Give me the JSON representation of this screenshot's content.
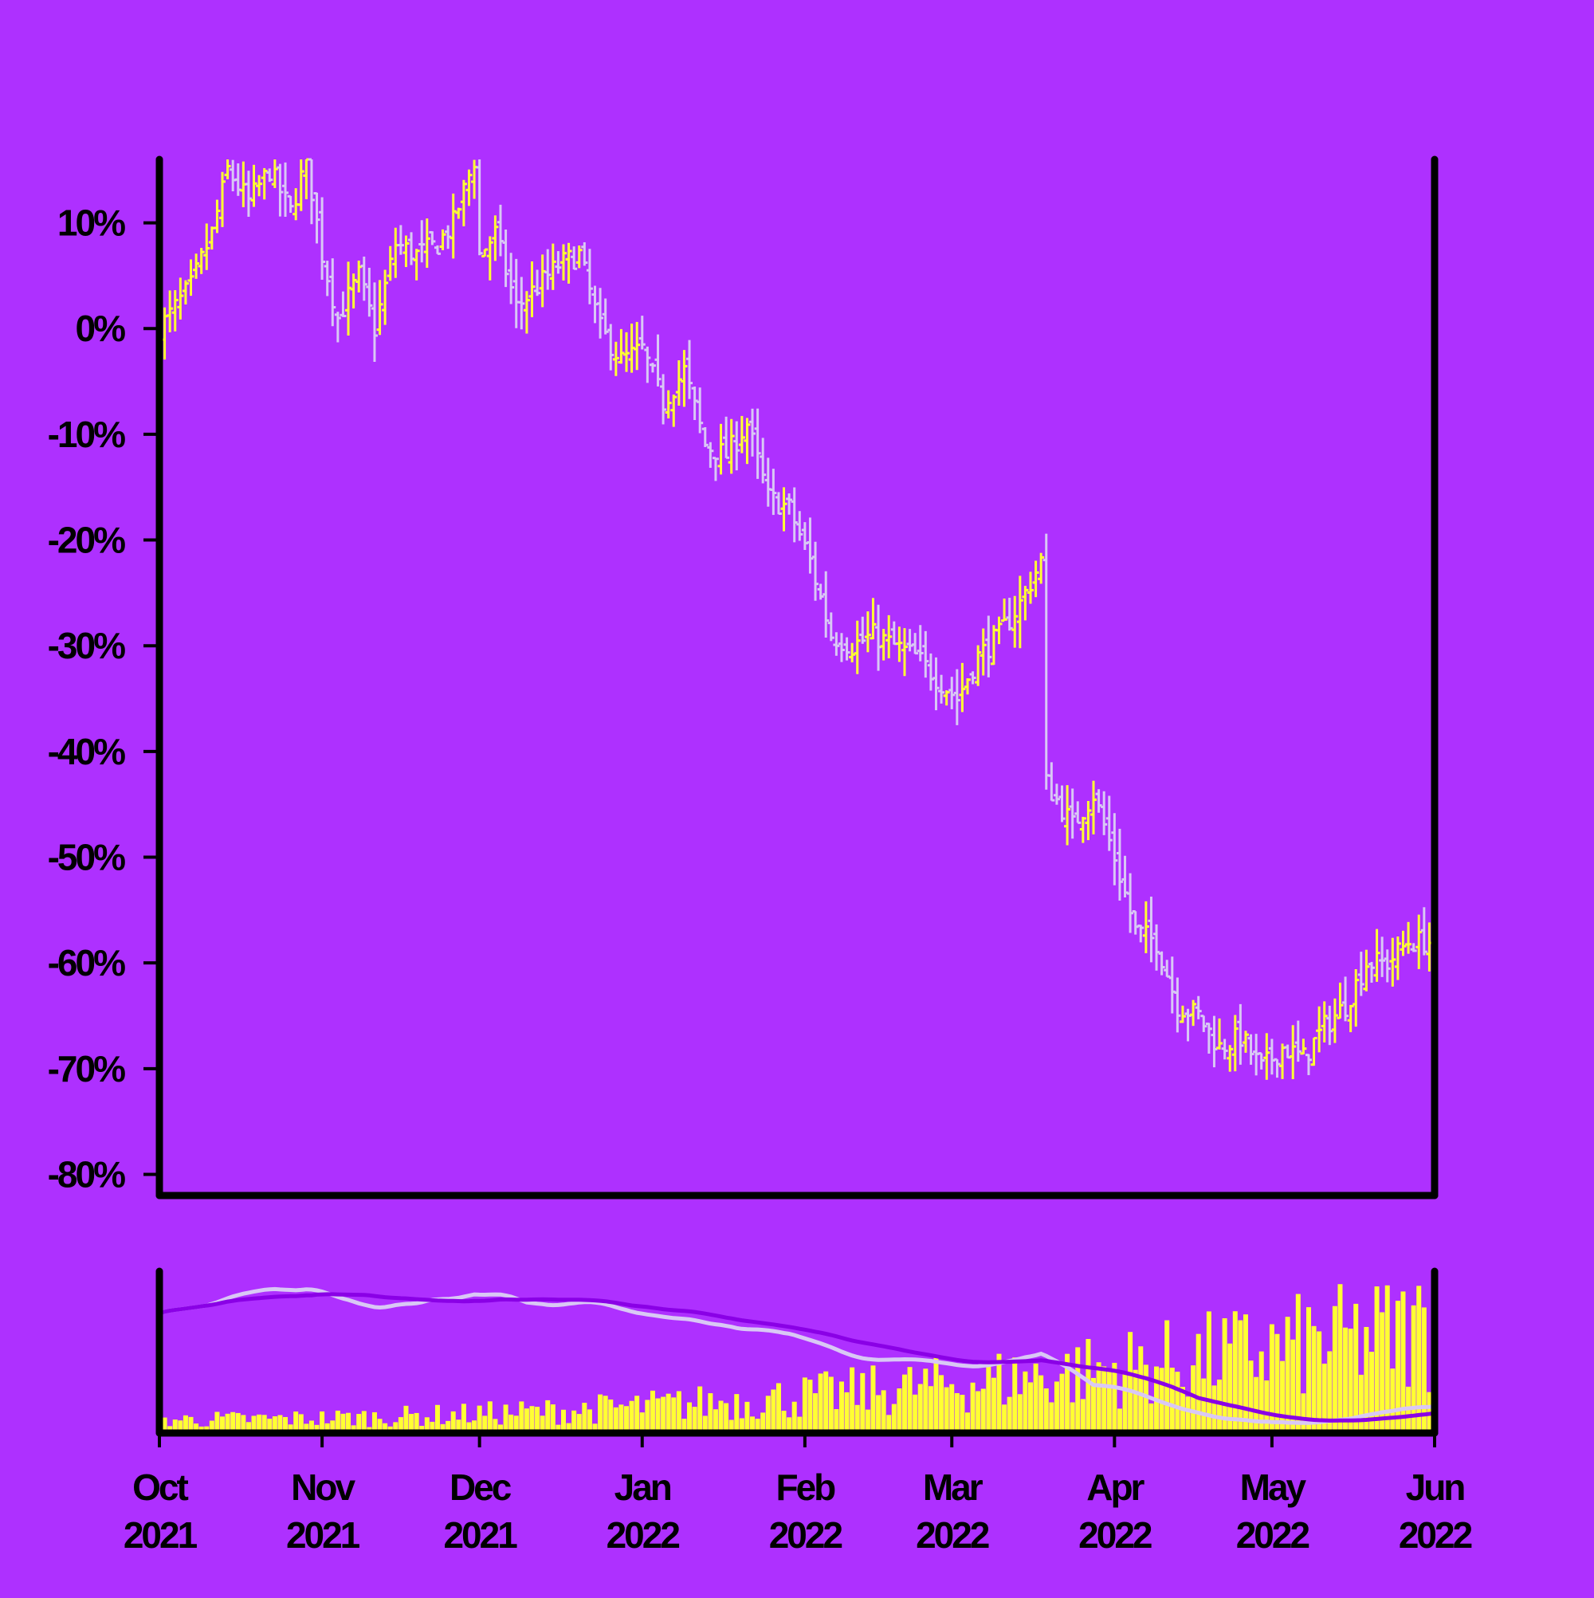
{
  "colors": {
    "background": "#ae30ff",
    "frame": "#000000",
    "up": "#ffff33",
    "down": "#d9c8f5",
    "volume": "#ffff33",
    "ma_fast": "#d9c8f5",
    "ma_slow": "#8a00e6"
  },
  "chart_data": [
    {
      "type": "ohlc",
      "panel": "price",
      "ylabel": "",
      "y_unit": "%",
      "ylim": [
        -82,
        16
      ],
      "yticks": [
        "10%",
        "0%",
        "-10%",
        "-20%",
        "-30%",
        "-40%",
        "-50%",
        "-60%",
        "-70%",
        "-80%"
      ],
      "ytick_values": [
        10,
        0,
        -10,
        -20,
        -30,
        -40,
        -50,
        -60,
        -70,
        -80
      ],
      "date_range": [
        "2021-10-01",
        "2022-06-01"
      ],
      "grid": false,
      "legend": "none",
      "close_path": [
        [
          "2021-10-01",
          0
        ],
        [
          "2021-10-07",
          4
        ],
        [
          "2021-10-11",
          9
        ],
        [
          "2021-10-14",
          15
        ],
        [
          "2021-10-18",
          12
        ],
        [
          "2021-10-22",
          15
        ],
        [
          "2021-10-26",
          11
        ],
        [
          "2021-10-29",
          16
        ],
        [
          "2021-11-01",
          7
        ],
        [
          "2021-11-04",
          1
        ],
        [
          "2021-11-08",
          5
        ],
        [
          "2021-11-11",
          0
        ],
        [
          "2021-11-15",
          8
        ],
        [
          "2021-11-19",
          7
        ],
        [
          "2021-11-23",
          8
        ],
        [
          "2021-11-26",
          10
        ],
        [
          "2021-11-30",
          16
        ],
        [
          "2021-12-01",
          7
        ],
        [
          "2021-12-04",
          9
        ],
        [
          "2021-12-08",
          2
        ],
        [
          "2021-12-12",
          4
        ],
        [
          "2021-12-16",
          6
        ],
        [
          "2021-12-20",
          7
        ],
        [
          "2021-12-24",
          0
        ],
        [
          "2021-12-28",
          -3
        ],
        [
          "2022-01-01",
          -2
        ],
        [
          "2022-01-05",
          -7
        ],
        [
          "2022-01-09",
          -4
        ],
        [
          "2022-01-13",
          -11
        ],
        [
          "2022-01-17",
          -12
        ],
        [
          "2022-01-21",
          -9
        ],
        [
          "2022-01-25",
          -16
        ],
        [
          "2022-01-29",
          -17
        ],
        [
          "2022-02-02",
          -22
        ],
        [
          "2022-02-06",
          -29
        ],
        [
          "2022-02-10",
          -30
        ],
        [
          "2022-02-14",
          -29
        ],
        [
          "2022-02-18",
          -30
        ],
        [
          "2022-02-22",
          -31
        ],
        [
          "2022-02-26",
          -33
        ],
        [
          "2022-03-02",
          -35
        ],
        [
          "2022-03-06",
          -31
        ],
        [
          "2022-03-10",
          -29
        ],
        [
          "2022-03-14",
          -26
        ],
        [
          "2022-03-18",
          -22
        ],
        [
          "2022-03-19",
          -43
        ],
        [
          "2022-03-24",
          -47
        ],
        [
          "2022-03-28",
          -44
        ],
        [
          "2022-04-01",
          -50
        ],
        [
          "2022-04-05",
          -57
        ],
        [
          "2022-04-09",
          -58
        ],
        [
          "2022-04-13",
          -64
        ],
        [
          "2022-04-17",
          -65
        ],
        [
          "2022-04-21",
          -68
        ],
        [
          "2022-04-25",
          -67
        ],
        [
          "2022-04-29",
          -70
        ],
        [
          "2022-05-03",
          -68
        ],
        [
          "2022-05-07",
          -69
        ],
        [
          "2022-05-11",
          -66
        ],
        [
          "2022-05-15",
          -64
        ],
        [
          "2022-05-19",
          -60
        ],
        [
          "2022-05-23",
          -60
        ],
        [
          "2022-05-27",
          -58
        ],
        [
          "2022-06-01",
          -58
        ]
      ]
    },
    {
      "type": "bar",
      "panel": "volume",
      "series": [
        {
          "role": "volume"
        },
        {
          "role": "moving-average-fast"
        },
        {
          "role": "moving-average-slow"
        }
      ],
      "grid": false,
      "legend": "none"
    }
  ],
  "x_axis": {
    "ticks": [
      {
        "month": "Oct",
        "year": "2021"
      },
      {
        "month": "Nov",
        "year": "2021"
      },
      {
        "month": "Dec",
        "year": "2021"
      },
      {
        "month": "Jan",
        "year": "2022"
      },
      {
        "month": "Feb",
        "year": "2022"
      },
      {
        "month": "Mar",
        "year": "2022"
      },
      {
        "month": "Apr",
        "year": "2022"
      },
      {
        "month": "May",
        "year": "2022"
      },
      {
        "month": "Jun",
        "year": "2022"
      }
    ],
    "tick_dates": [
      "2021-10-01",
      "2021-11-01",
      "2021-12-01",
      "2022-01-01",
      "2022-02-01",
      "2022-03-01",
      "2022-04-01",
      "2022-05-01",
      "2022-06-01"
    ]
  }
}
